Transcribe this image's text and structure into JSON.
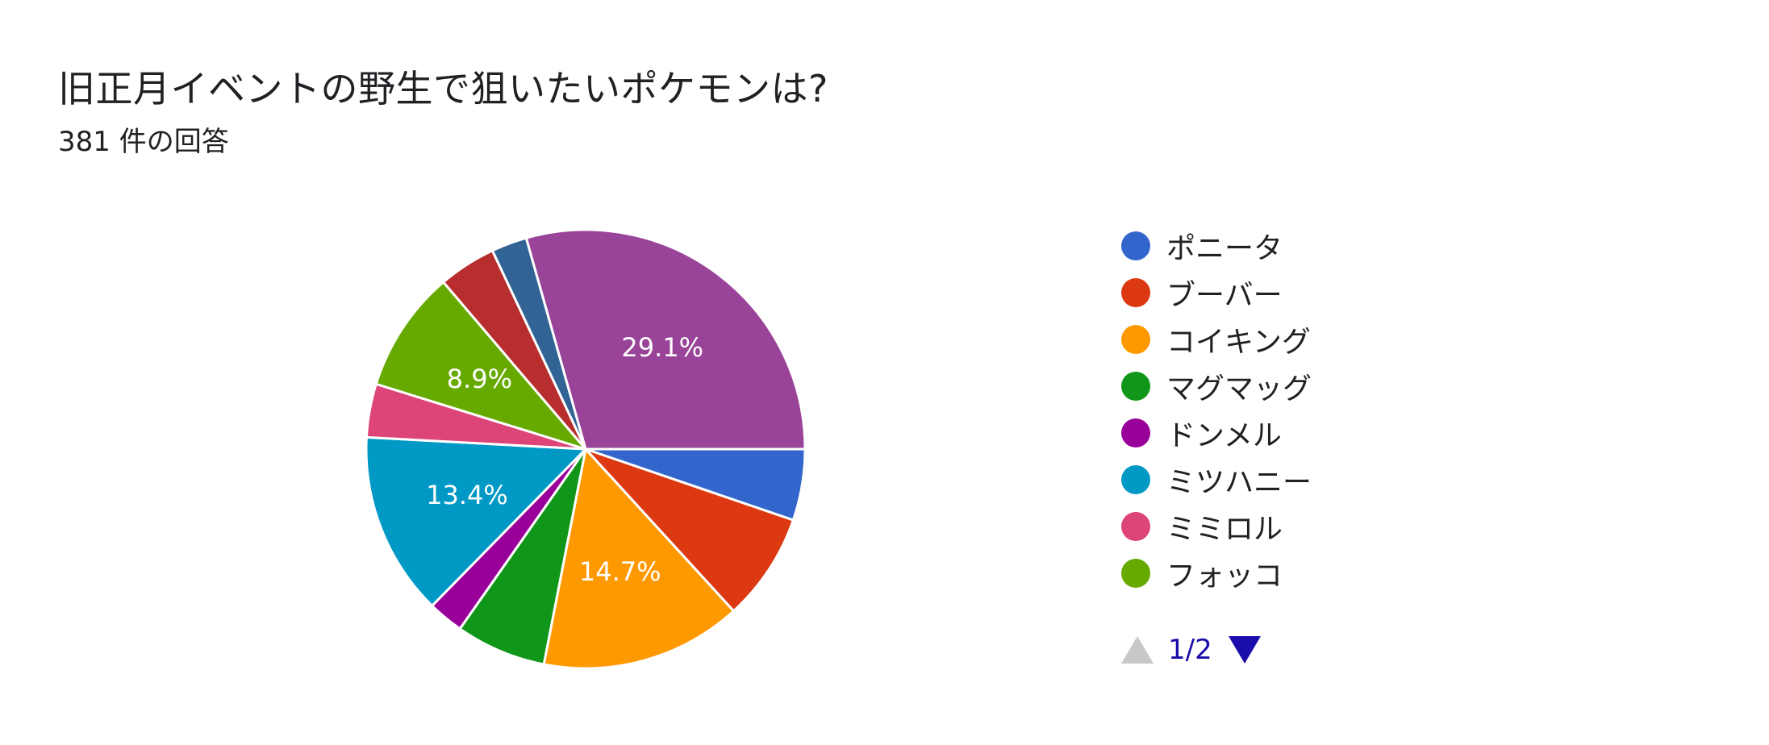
{
  "header": {
    "title": "旧正月イベントの野生で狙いたいポケモンは?",
    "response_count": "381 件の回答"
  },
  "chart_data": {
    "type": "pie",
    "slices": [
      {
        "label": "ポニータ",
        "value": 5.2,
        "color": "#3366cc",
        "data_label": ""
      },
      {
        "label": "ブーバー",
        "value": 7.9,
        "color": "#dc3912",
        "data_label": ""
      },
      {
        "label": "コイキング",
        "value": 14.7,
        "color": "#ff9900",
        "data_label": "14.7%"
      },
      {
        "label": "マグマッグ",
        "value": 6.6,
        "color": "#109618",
        "data_label": ""
      },
      {
        "label": "ドンメル",
        "value": 2.6,
        "color": "#990099",
        "data_label": ""
      },
      {
        "label": "ミツハニー",
        "value": 13.4,
        "color": "#0099c6",
        "data_label": "13.4%"
      },
      {
        "label": "ミミロル",
        "value": 3.9,
        "color": "#dd4477",
        "data_label": ""
      },
      {
        "label": "フォッコ",
        "value": 8.9,
        "color": "#66aa00",
        "data_label": "8.9%"
      },
      {
        "label": "",
        "value": 4.2,
        "color": "#b82e2e",
        "data_label": ""
      },
      {
        "label": "",
        "value": 2.6,
        "color": "#316395",
        "data_label": ""
      },
      {
        "label": "",
        "value": 29.1,
        "color": "#994499",
        "data_label": "29.1%"
      }
    ],
    "legend_placement": "right"
  },
  "legend": {
    "items": [
      "ポニータ",
      "ブーバー",
      "コイキング",
      "マグマッグ",
      "ドンメル",
      "ミツハニー",
      "ミミロル",
      "フォッコ"
    ],
    "colors": [
      "#3366cc",
      "#dc3912",
      "#ff9900",
      "#109618",
      "#990099",
      "#0099c6",
      "#dd4477",
      "#66aa00"
    ]
  },
  "pager": {
    "text": "1/2",
    "prev_icon": "triangle-up-icon",
    "next_icon": "triangle-down-icon"
  }
}
